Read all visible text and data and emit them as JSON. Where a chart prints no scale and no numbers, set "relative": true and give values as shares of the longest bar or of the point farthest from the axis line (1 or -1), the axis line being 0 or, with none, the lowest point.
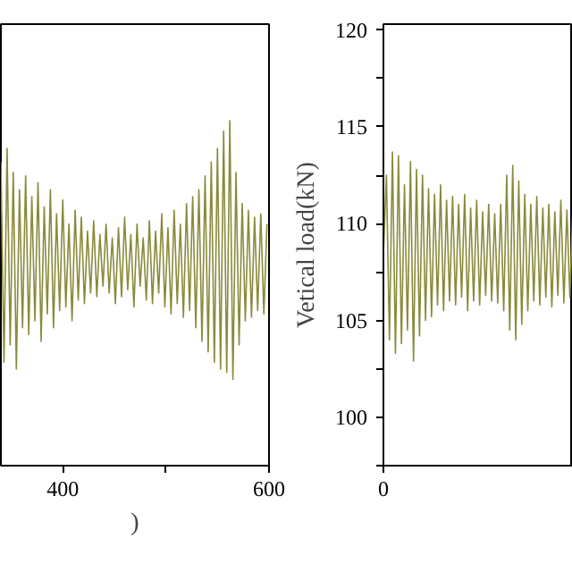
{
  "chart_data": [
    {
      "type": "line",
      "relative": true,
      "xlabel": ")",
      "xlim": [
        340,
        600
      ],
      "xticks": [
        400,
        {
          "value": 500,
          "label": null
        },
        600
      ],
      "tick_labels": "x",
      "x": [
        340,
        343,
        346,
        349,
        352,
        355,
        358,
        361,
        364,
        367,
        370,
        373,
        376,
        379,
        382,
        385,
        388,
        391,
        394,
        397,
        400,
        403,
        406,
        409,
        412,
        415,
        418,
        421,
        424,
        427,
        430,
        433,
        436,
        439,
        442,
        445,
        448,
        451,
        454,
        457,
        460,
        463,
        466,
        469,
        472,
        475,
        478,
        481,
        484,
        487,
        490,
        493,
        496,
        499,
        502,
        505,
        508,
        511,
        514,
        517,
        520,
        523,
        526,
        529,
        532,
        535,
        538,
        541,
        544,
        547,
        550,
        553,
        556,
        559,
        562,
        565,
        568,
        571,
        574,
        577,
        580,
        583,
        586,
        589,
        592,
        595,
        598
      ],
      "series": [
        {
          "color": "#8a8a3c",
          "values": [
            0.88,
            0.3,
            0.92,
            0.35,
            0.85,
            0.28,
            0.8,
            0.4,
            0.84,
            0.38,
            0.78,
            0.42,
            0.82,
            0.36,
            0.75,
            0.44,
            0.8,
            0.4,
            0.73,
            0.45,
            0.77,
            0.46,
            0.7,
            0.42,
            0.74,
            0.48,
            0.72,
            0.47,
            0.68,
            0.5,
            0.71,
            0.49,
            0.67,
            0.52,
            0.7,
            0.5,
            0.66,
            0.47,
            0.69,
            0.49,
            0.72,
            0.51,
            0.67,
            0.46,
            0.7,
            0.52,
            0.66,
            0.48,
            0.71,
            0.47,
            0.68,
            0.5,
            0.73,
            0.46,
            0.69,
            0.44,
            0.74,
            0.47,
            0.7,
            0.43,
            0.76,
            0.45,
            0.78,
            0.4,
            0.8,
            0.36,
            0.84,
            0.33,
            0.88,
            0.3,
            0.92,
            0.28,
            0.97,
            0.27,
            1.0,
            0.25,
            0.85,
            0.35,
            0.76,
            0.42,
            0.74,
            0.43,
            0.72,
            0.45,
            0.73,
            0.44,
            0.7
          ]
        }
      ]
    },
    {
      "type": "line",
      "ylabel": "Vetical load(kN)",
      "annotations": [
        "0"
      ],
      "ylim": [
        97.5,
        120.3
      ],
      "yticks": [
        {
          "value": 97.5,
          "label": null
        },
        100,
        {
          "value": 102.5,
          "label": null
        },
        105,
        {
          "value": 107.5,
          "label": null
        },
        110,
        {
          "value": 112.5,
          "label": null
        },
        115,
        {
          "value": 117.5,
          "label": null
        },
        120
      ],
      "tick_labels": "y",
      "categories": [
        null,
        null,
        null,
        null,
        null,
        null,
        null,
        null,
        null,
        null,
        null,
        null,
        null,
        null,
        null,
        null,
        null,
        null,
        null,
        null,
        null,
        null,
        null,
        null,
        null,
        null,
        null,
        null,
        null,
        null,
        null,
        null,
        null,
        null,
        null,
        null,
        null,
        null,
        null,
        null,
        null,
        null,
        null,
        null,
        null,
        null,
        null,
        null,
        null,
        null,
        null,
        null,
        null,
        null,
        null,
        null,
        null,
        null,
        null,
        null,
        null,
        null,
        null,
        null
      ],
      "series": [
        {
          "color": "#8a8a3c",
          "values": [
            108.5,
            112.5,
            104,
            113.7,
            103.3,
            113.5,
            103.8,
            112,
            104.5,
            113.2,
            102.9,
            112.8,
            104.2,
            112.5,
            105,
            111.8,
            105.2,
            111.5,
            105.8,
            112,
            105.5,
            111.2,
            106,
            111.4,
            105.8,
            111,
            106.2,
            111.5,
            105.5,
            110.8,
            106,
            111.2,
            105.8,
            110.6,
            106.3,
            111,
            106,
            110.5,
            105.9,
            111,
            105.5,
            112.5,
            104.5,
            113,
            104,
            112.2,
            104.8,
            111.5,
            105.5,
            111,
            106,
            111.4,
            105.8,
            110.8,
            106.2,
            111,
            105.7,
            110.6,
            106.3,
            111.2,
            105.9,
            110.7,
            106.2,
            110.9
          ]
        }
      ]
    }
  ]
}
